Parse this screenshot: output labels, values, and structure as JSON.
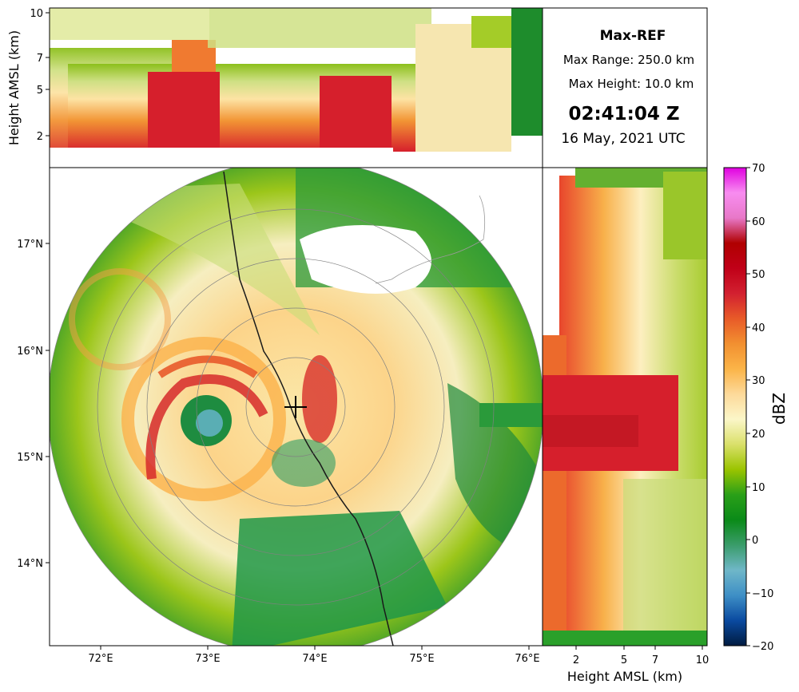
{
  "info_panel": {
    "product": "Max-REF",
    "max_range": "Max Range: 250.0 km",
    "max_height": "Max Height: 10.0 km",
    "time": "02:41:04 Z",
    "date": "16 May, 2021 UTC"
  },
  "colorbar": {
    "label": "dBZ",
    "ticks": [
      "70",
      "60",
      "50",
      "40",
      "30",
      "20",
      "10",
      "0",
      "−10",
      "−20"
    ],
    "stops": [
      "#001b40",
      "#0a4aa0",
      "#3e8fc6",
      "#6fb7c8",
      "#3a9c6a",
      "#0a8a18",
      "#2aa018",
      "#9ac400",
      "#dae06a",
      "#fbf6c8",
      "#fdd99a",
      "#fbb448",
      "#f29030",
      "#e85a28",
      "#d22030",
      "#c00018",
      "#b00000",
      "#e878c8",
      "#f88cf0",
      "#e000e0"
    ]
  },
  "chart_data": {
    "type": "heatmap",
    "product": "Max-REF",
    "units": "dBZ",
    "value_range": [
      -20,
      70
    ],
    "max_range_km": 250.0,
    "max_height_km": 10.0,
    "time_utc": "02:41:04 Z",
    "date_utc": "16 May, 2021 UTC",
    "x_ticks": [
      "72°E",
      "73°E",
      "74°E",
      "75°E",
      "76°E"
    ],
    "y_ticks": [
      "17°N",
      "16°N",
      "15°N",
      "14°N"
    ],
    "height_ticks": [
      "2",
      "5",
      "7",
      "10"
    ],
    "height_axis_label": "Height AMSL (km)",
    "colorbar_ticks": [
      -20,
      -10,
      0,
      10,
      20,
      30,
      40,
      50,
      60,
      70
    ],
    "range_rings_km": [
      50,
      100,
      150,
      200,
      250
    ],
    "radar_site": {
      "lon": 73.85,
      "lat": 15.47
    },
    "cyclone_eye": {
      "lon": 72.95,
      "lat": 15.3
    }
  }
}
